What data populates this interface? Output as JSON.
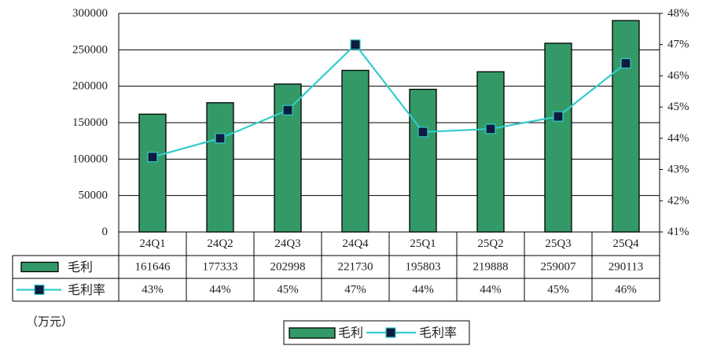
{
  "chart_data": {
    "type": "bar",
    "categories": [
      "24Q1",
      "24Q2",
      "24Q3",
      "24Q4",
      "25Q1",
      "25Q2",
      "25Q3",
      "25Q4"
    ],
    "series": [
      {
        "name": "毛利",
        "type": "bar",
        "axis": "left",
        "color": "#339966",
        "values": [
          161646,
          177333,
          202998,
          221730,
          195803,
          219888,
          259007,
          290113
        ],
        "table_labels": [
          "161646",
          "177333",
          "202998",
          "221730",
          "195803",
          "219888",
          "259007",
          "290113"
        ]
      },
      {
        "name": "毛利率",
        "type": "line",
        "axis": "right",
        "color": "#33CCCC",
        "marker_color": "#0D1B3D",
        "values": [
          43.4,
          44.0,
          44.9,
          47.0,
          44.2,
          44.3,
          44.7,
          46.4
        ],
        "table_labels": [
          "43%",
          "44%",
          "45%",
          "47%",
          "44%",
          "44%",
          "45%",
          "46%"
        ]
      }
    ],
    "y_left": {
      "ylim": [
        0,
        300000
      ],
      "ticks": [
        "0",
        "50000",
        "100000",
        "150000",
        "200000",
        "250000",
        "300000"
      ]
    },
    "y_right": {
      "ylim": [
        41,
        48
      ],
      "ticks": [
        "41%",
        "42%",
        "43%",
        "44%",
        "45%",
        "46%",
        "47%",
        "48%"
      ]
    },
    "unit_label": "（万元）",
    "grid": true,
    "legend_position": "bottom-center"
  }
}
